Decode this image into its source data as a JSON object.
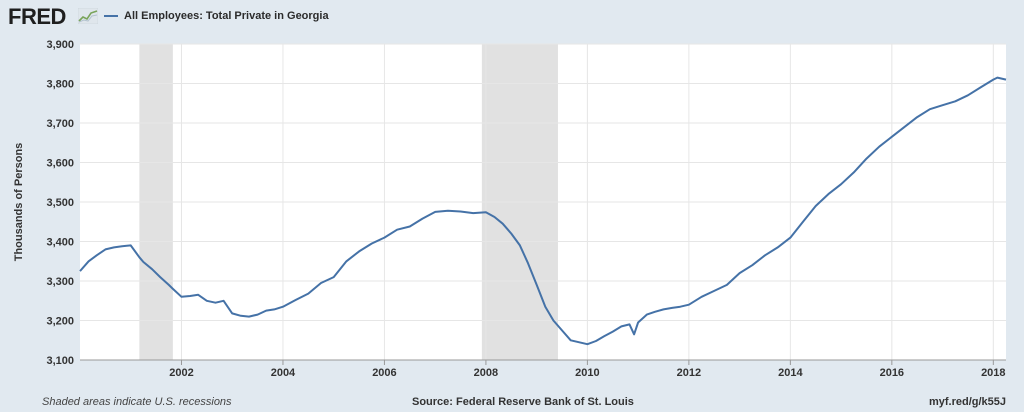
{
  "header": {
    "logo_text": "FRED",
    "series_title": "All Employees: Total Private in Georgia"
  },
  "footer": {
    "note": "Shaded areas indicate U.S. recessions",
    "source": "Source: Federal Reserve Bank of St. Louis",
    "link": "myf.red/g/k55J"
  },
  "colors": {
    "line": "#4572a7",
    "recession": "#e1e1e1",
    "grid": "#e6e6e6",
    "background": "#e1e9f0"
  },
  "chart_data": {
    "type": "line",
    "title": "",
    "xlabel": "",
    "ylabel": "Thousands of Persons",
    "ylim": [
      3100,
      3900
    ],
    "yticks": [
      3100,
      3200,
      3300,
      3400,
      3500,
      3600,
      3700,
      3800,
      3900
    ],
    "ytick_labels": [
      "3,100",
      "3,200",
      "3,300",
      "3,400",
      "3,500",
      "3,600",
      "3,700",
      "3,800",
      "3,900"
    ],
    "xlim": [
      2000.0,
      2018.25
    ],
    "xticks": [
      2002,
      2004,
      2006,
      2008,
      2010,
      2012,
      2014,
      2016,
      2018
    ],
    "xtick_labels": [
      "2002",
      "2004",
      "2006",
      "2008",
      "2010",
      "2012",
      "2014",
      "2016",
      "2018"
    ],
    "grid": true,
    "recessions": [
      [
        2001.17,
        2001.83
      ],
      [
        2007.92,
        2009.42
      ]
    ],
    "series": [
      {
        "name": "All Employees: Total Private in Georgia",
        "x": [
          2000.0,
          2000.17,
          2000.33,
          2000.5,
          2000.67,
          2000.83,
          2001.0,
          2001.17,
          2001.25,
          2001.42,
          2001.58,
          2001.75,
          2001.83,
          2002.0,
          2002.17,
          2002.33,
          2002.5,
          2002.67,
          2002.83,
          2003.0,
          2003.17,
          2003.33,
          2003.5,
          2003.67,
          2003.83,
          2004.0,
          2004.25,
          2004.5,
          2004.75,
          2005.0,
          2005.25,
          2005.5,
          2005.75,
          2006.0,
          2006.25,
          2006.5,
          2006.75,
          2007.0,
          2007.25,
          2007.5,
          2007.75,
          2008.0,
          2008.17,
          2008.33,
          2008.5,
          2008.67,
          2008.83,
          2009.0,
          2009.17,
          2009.33,
          2009.5,
          2009.67,
          2009.83,
          2010.0,
          2010.17,
          2010.33,
          2010.5,
          2010.67,
          2010.83,
          2010.92,
          2011.0,
          2011.17,
          2011.33,
          2011.5,
          2011.67,
          2011.83,
          2012.0,
          2012.25,
          2012.5,
          2012.75,
          2013.0,
          2013.25,
          2013.5,
          2013.75,
          2014.0,
          2014.25,
          2014.5,
          2014.75,
          2015.0,
          2015.25,
          2015.5,
          2015.75,
          2016.0,
          2016.25,
          2016.5,
          2016.75,
          2017.0,
          2017.25,
          2017.5,
          2017.75,
          2018.0,
          2018.08,
          2018.25
        ],
        "values": [
          3325,
          3350,
          3365,
          3380,
          3385,
          3388,
          3390,
          3360,
          3348,
          3330,
          3310,
          3290,
          3280,
          3260,
          3262,
          3265,
          3250,
          3245,
          3250,
          3218,
          3212,
          3210,
          3215,
          3225,
          3228,
          3235,
          3252,
          3268,
          3295,
          3310,
          3350,
          3375,
          3395,
          3410,
          3430,
          3438,
          3458,
          3475,
          3478,
          3476,
          3472,
          3474,
          3462,
          3445,
          3420,
          3390,
          3345,
          3290,
          3235,
          3200,
          3175,
          3150,
          3145,
          3140,
          3148,
          3160,
          3172,
          3185,
          3190,
          3165,
          3195,
          3215,
          3222,
          3228,
          3232,
          3235,
          3240,
          3260,
          3275,
          3290,
          3320,
          3340,
          3365,
          3385,
          3410,
          3450,
          3490,
          3520,
          3545,
          3575,
          3610,
          3640,
          3665,
          3690,
          3715,
          3735,
          3745,
          3755,
          3770,
          3790,
          3810,
          3815,
          3810
        ]
      }
    ]
  }
}
